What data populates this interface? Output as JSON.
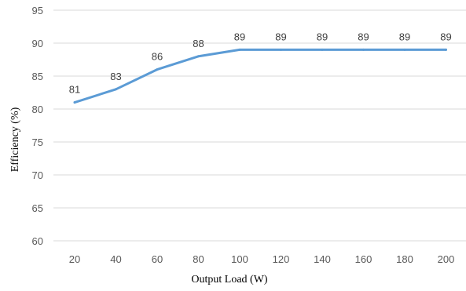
{
  "chart_data": {
    "type": "line",
    "x": [
      20,
      40,
      60,
      80,
      100,
      120,
      140,
      160,
      180,
      200
    ],
    "series": [
      {
        "values": [
          81,
          83,
          86,
          88,
          89,
          89,
          89,
          89,
          89,
          89
        ],
        "color": "#5b9bd5"
      }
    ],
    "data_labels": [
      "81",
      "83",
      "86",
      "88",
      "89",
      "89",
      "89",
      "89",
      "89",
      "89"
    ],
    "xlabel": "Output Load (W)",
    "ylabel": "Efficiency (%)",
    "ylim": [
      60,
      95
    ],
    "yticks": [
      60,
      65,
      70,
      75,
      80,
      85,
      90,
      95
    ],
    "grid": "horizontal",
    "legend": "none"
  }
}
